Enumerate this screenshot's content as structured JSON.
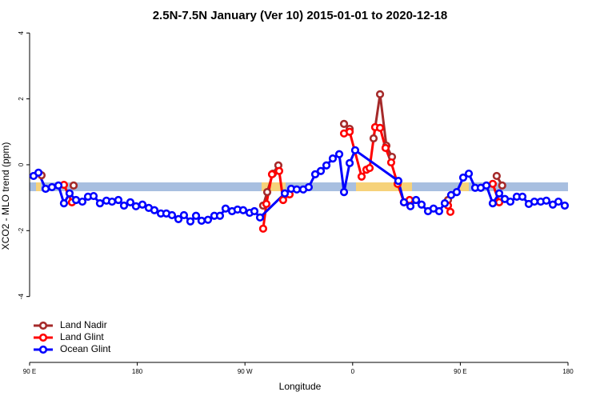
{
  "chart_data": {
    "type": "line",
    "title": "2.5N-7.5N January (Ver 10)   2015-01-01 to 2020-12-18",
    "x_label": "Longitude",
    "y_label": "XCO2 - MLO trend (ppm)",
    "xlim": [
      90,
      540
    ],
    "ylim": [
      -6,
      4.2
    ],
    "xticks": [
      {
        "value": 90,
        "label": "90 E"
      },
      180,
      {
        "value": 270,
        "label": "90 W"
      },
      {
        "value": 360,
        "label": "0"
      },
      {
        "value": 450,
        "label": "90 E"
      },
      {
        "value": 540,
        "label": "180"
      }
    ],
    "yticks": [
      -4,
      -2,
      0,
      2,
      4
    ],
    "legend": "bottom-left",
    "series": [
      {
        "name": "Land Nadir",
        "color": "#a52a2a",
        "x": [
          100.0,
          null,
          126.8,
          null,
          285.2,
          288.6,
          293.3,
          297.9,
          null,
          352.8,
          357.5,
          null,
          377.5,
          382.9,
          388.2,
          392.9,
          null,
          439.7,
          null,
          480.4,
          485.0
        ],
        "values": [
          -0.32,
          null,
          -0.63,
          null,
          -1.24,
          -0.83,
          -0.27,
          -0.02,
          null,
          1.24,
          1.09,
          null,
          0.8,
          2.14,
          0.58,
          0.24,
          null,
          -1.07,
          null,
          -0.34,
          -0.63
        ]
      },
      {
        "name": "Land Glint",
        "color": "#ff0000",
        "x": [
          118.7,
          125.4,
          null,
          285.2,
          287.9,
          292.6,
          298.6,
          301.9,
          307.3,
          null,
          352.8,
          357.5,
          367.5,
          371.5,
          374.2,
          378.8,
          382.9,
          387.5,
          392.2,
          397.6,
          402.9,
          407.6,
          null,
          439.7,
          441.7,
          null,
          477.1,
          482.5
        ],
        "values": [
          -0.61,
          -1.14,
          null,
          -1.94,
          -1.19,
          -0.29,
          -0.19,
          -1.07,
          -0.9,
          null,
          0.95,
          1.0,
          -0.36,
          -0.15,
          -0.1,
          1.14,
          1.12,
          0.51,
          0.07,
          -0.58,
          -1.14,
          -1.07,
          null,
          -1.24,
          -1.43,
          null,
          -0.58,
          -1.14
        ]
      },
      {
        "name": "Ocean Glint",
        "color": "#0000ff",
        "x": [
          93.3,
          97.4,
          103.4,
          108.7,
          114.1,
          118.7,
          123.4,
          128.8,
          134.1,
          138.8,
          143.5,
          148.8,
          154.2,
          158.9,
          164.2,
          168.9,
          174.2,
          178.9,
          184.3,
          189.6,
          194.3,
          199.7,
          204.3,
          209.0,
          214.4,
          219.0,
          224.4,
          229.1,
          233.7,
          239.1,
          244.4,
          249.1,
          253.8,
          259.2,
          263.8,
          268.5,
          273.9,
          277.9,
          282.6,
          303.3,
          308.6,
          313.3,
          318.7,
          323.3,
          328.7,
          333.4,
          338.1,
          343.4,
          348.8,
          352.8,
          357.5,
          362.1,
          398.2,
          402.9,
          408.3,
          413.0,
          417.6,
          423.0,
          427.6,
          432.3,
          437.0,
          442.3,
          447.0,
          452.4,
          457.1,
          462.4,
          467.1,
          471.8,
          477.1,
          482.5,
          487.2,
          491.8,
          497.2,
          501.9,
          507.2,
          511.9,
          517.2,
          521.9,
          527.3,
          532.0,
          537.3
        ],
        "values": [
          -0.34,
          -0.24,
          -0.73,
          -0.68,
          -0.63,
          -1.17,
          -0.87,
          -1.07,
          -1.12,
          -0.97,
          -0.95,
          -1.17,
          -1.09,
          -1.12,
          -1.07,
          -1.24,
          -1.14,
          -1.26,
          -1.21,
          -1.31,
          -1.38,
          -1.48,
          -1.48,
          -1.53,
          -1.65,
          -1.53,
          -1.72,
          -1.55,
          -1.7,
          -1.67,
          -1.55,
          -1.55,
          -1.33,
          -1.41,
          -1.36,
          -1.38,
          -1.46,
          -1.41,
          -1.6,
          -0.87,
          -0.73,
          -0.75,
          -0.75,
          -0.68,
          -0.29,
          -0.19,
          -0.02,
          0.19,
          0.32,
          -0.83,
          0.05,
          0.44,
          -0.49,
          -1.14,
          -1.26,
          -1.07,
          -1.21,
          -1.41,
          -1.33,
          -1.41,
          -1.17,
          -0.92,
          -0.83,
          -0.39,
          -0.27,
          -0.7,
          -0.7,
          -0.63,
          -1.17,
          -0.87,
          -1.04,
          -1.12,
          -0.97,
          -0.97,
          -1.19,
          -1.12,
          -1.12,
          -1.09,
          -1.21,
          -1.12,
          -1.24
        ]
      }
    ]
  }
}
